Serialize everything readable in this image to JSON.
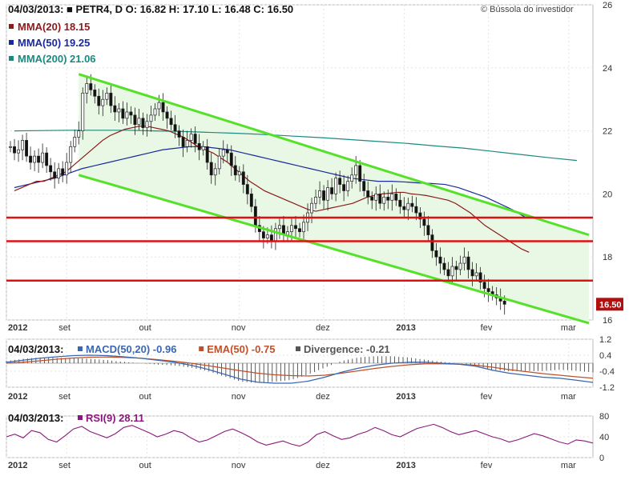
{
  "chart_data": [
    {
      "type": "candlestick",
      "panel": "price",
      "header": {
        "date": "04/03/2013:",
        "ohlc_text": "PETR4, D O: 16.82  H: 17.10  L: 16.48  C: 16.50",
        "copyright": "© Bússola do investidor"
      },
      "legend": [
        {
          "name": "MMA(20) 18.15",
          "color": "#8b1a1a"
        },
        {
          "name": "MMA(50) 19.25",
          "color": "#1a2a9a"
        },
        {
          "name": "MMA(200) 21.06",
          "color": "#1a8a80"
        }
      ],
      "ylim": [
        16,
        26
      ],
      "yticks": [
        16,
        18,
        20,
        22,
        24,
        26
      ],
      "x_ticks": [
        {
          "label": "2012",
          "index": 0
        },
        {
          "label": "set",
          "index": 15
        },
        {
          "label": "out",
          "index": 35
        },
        {
          "label": "nov",
          "index": 58
        },
        {
          "label": "dez",
          "index": 79
        },
        {
          "label": "2013",
          "index": 99
        },
        {
          "label": "fev",
          "index": 120
        },
        {
          "label": "mar",
          "index": 140
        }
      ],
      "last_price_badge": "16.50",
      "closes": [
        21.5,
        21.3,
        21.4,
        21.7,
        21.2,
        21.0,
        21.2,
        21.0,
        21.3,
        20.9,
        20.7,
        20.5,
        20.8,
        20.6,
        21.0,
        21.5,
        21.8,
        22.0,
        23.2,
        23.5,
        23.3,
        23.1,
        22.8,
        23.0,
        23.2,
        22.8,
        22.6,
        22.7,
        22.4,
        22.6,
        22.5,
        22.2,
        22.4,
        22.1,
        22.3,
        22.5,
        22.7,
        22.9,
        22.6,
        22.4,
        22.2,
        22.0,
        21.8,
        21.5,
        21.7,
        21.9,
        21.6,
        21.4,
        21.5,
        21.0,
        20.6,
        20.8,
        21.2,
        21.4,
        21.3,
        20.9,
        20.6,
        20.7,
        20.3,
        20.0,
        19.6,
        19.0,
        18.8,
        18.6,
        18.7,
        18.5,
        18.9,
        19.0,
        18.7,
        18.8,
        19.0,
        18.9,
        18.8,
        19.1,
        19.4,
        19.7,
        19.9,
        20.1,
        19.8,
        20.2,
        20.0,
        20.5,
        20.3,
        20.1,
        20.4,
        20.6,
        20.9,
        20.4,
        20.1,
        19.9,
        19.8,
        20.0,
        19.7,
        19.9,
        19.8,
        20.0,
        19.8,
        19.6,
        19.5,
        19.7,
        19.6,
        19.4,
        19.2,
        19.0,
        18.7,
        18.2,
        18.0,
        17.8,
        17.6,
        17.4,
        17.7,
        17.6,
        17.8,
        18.0,
        17.6,
        17.4,
        17.5,
        17.2,
        17.0,
        16.9,
        16.8,
        16.7,
        16.6,
        16.5
      ],
      "ma20": [
        20.1,
        20.2,
        20.3,
        20.4,
        20.4,
        20.5,
        20.6,
        20.7,
        20.9,
        21.1,
        21.3,
        21.5,
        21.7,
        21.85,
        21.95,
        22.05,
        22.1,
        22.15,
        22.15,
        22.1,
        22.05,
        22.0,
        21.9,
        21.8,
        21.65,
        21.5,
        21.4,
        21.3,
        21.15,
        21.0,
        20.8,
        20.6,
        20.4,
        20.25,
        20.1,
        20.0,
        19.9,
        19.8,
        19.7,
        19.6,
        19.5,
        19.45,
        19.5,
        19.55,
        19.6,
        19.65,
        19.7,
        19.8,
        19.9,
        19.95,
        20.0,
        20.02,
        20.05,
        20.05,
        20.0,
        19.98,
        19.95,
        19.9,
        19.85,
        19.8,
        19.7,
        19.55,
        19.4,
        19.2,
        19.0,
        18.85,
        18.7,
        18.55,
        18.4,
        18.25,
        18.15
      ],
      "ma50": [
        20.2,
        20.3,
        20.4,
        20.5,
        20.65,
        20.8,
        20.9,
        21.0,
        21.1,
        21.2,
        21.3,
        21.4,
        21.45,
        21.5,
        21.5,
        21.45,
        21.4,
        21.3,
        21.2,
        21.1,
        21.0,
        20.9,
        20.8,
        20.7,
        20.6,
        20.5,
        20.45,
        20.4,
        20.4,
        20.38,
        20.35,
        20.33,
        20.3,
        20.2,
        20.05,
        19.9,
        19.7,
        19.5,
        19.25
      ],
      "ma200": [
        22.0,
        22.01,
        22.02,
        22.02,
        22.02,
        22.0,
        21.98,
        21.95,
        21.92,
        21.88,
        21.83,
        21.78,
        21.72,
        21.66,
        21.6,
        21.52,
        21.45,
        21.35,
        21.25,
        21.15,
        21.06
      ],
      "channel_upper": [
        {
          "x": 18,
          "y": 23.8
        },
        {
          "x": 145,
          "y": 18.7
        }
      ],
      "channel_lower": [
        {
          "x": 18,
          "y": 20.6
        },
        {
          "x": 145,
          "y": 15.9
        }
      ],
      "horizontal_levels": [
        19.25,
        18.5,
        17.25
      ]
    },
    {
      "type": "line",
      "panel": "macd",
      "header": {
        "date": "04/03/2013:"
      },
      "legend": [
        {
          "name": "MACD(50,20) -0.96",
          "color": "#3a66b0"
        },
        {
          "name": "EMA(50) -0.75",
          "color": "#c0502a"
        },
        {
          "name": "Divergence: -0.21",
          "color": "#555555"
        }
      ],
      "ylim": [
        -1.2,
        1.2
      ],
      "yticks": [
        1.2,
        0.4,
        -0.4,
        -1.2
      ],
      "macd": [
        0.05,
        0.15,
        0.25,
        0.32,
        0.38,
        0.4,
        0.38,
        0.32,
        0.25,
        0.15,
        0.05,
        -0.1,
        -0.3,
        -0.55,
        -0.8,
        -0.95,
        -1.0,
        -1.0,
        -0.9,
        -0.7,
        -0.45,
        -0.25,
        -0.1,
        0.0,
        0.05,
        0.05,
        0.0,
        -0.05,
        -0.15,
        -0.35,
        -0.5,
        -0.6,
        -0.7,
        -0.75,
        -0.85,
        -0.96
      ],
      "ema": [
        0.0,
        0.05,
        0.12,
        0.2,
        0.26,
        0.3,
        0.31,
        0.29,
        0.25,
        0.18,
        0.1,
        0.0,
        -0.12,
        -0.25,
        -0.38,
        -0.5,
        -0.58,
        -0.62,
        -0.64,
        -0.6,
        -0.5,
        -0.38,
        -0.26,
        -0.16,
        -0.08,
        -0.03,
        -0.03,
        -0.05,
        -0.1,
        -0.2,
        -0.32,
        -0.42,
        -0.52,
        -0.6,
        -0.68,
        -0.75
      ]
    },
    {
      "type": "line",
      "panel": "rsi",
      "header": {
        "date": "04/03/2013:"
      },
      "legend": [
        {
          "name": "RSI(9) 28.11",
          "color": "#8a1a7a"
        }
      ],
      "ylim": [
        0,
        80
      ],
      "yticks": [
        80,
        40,
        0
      ],
      "rsi": [
        40,
        45,
        38,
        52,
        48,
        35,
        30,
        42,
        55,
        60,
        50,
        44,
        38,
        46,
        58,
        62,
        55,
        48,
        40,
        45,
        52,
        48,
        38,
        30,
        34,
        42,
        50,
        55,
        48,
        40,
        30,
        24,
        28,
        32,
        26,
        22,
        30,
        44,
        50,
        42,
        35,
        38,
        45,
        50,
        58,
        52,
        44,
        40,
        48,
        56,
        60,
        64,
        58,
        50,
        44,
        48,
        52,
        46,
        40,
        36,
        30,
        34,
        40,
        46,
        42,
        36,
        30,
        26,
        34,
        32,
        28
      ]
    }
  ]
}
